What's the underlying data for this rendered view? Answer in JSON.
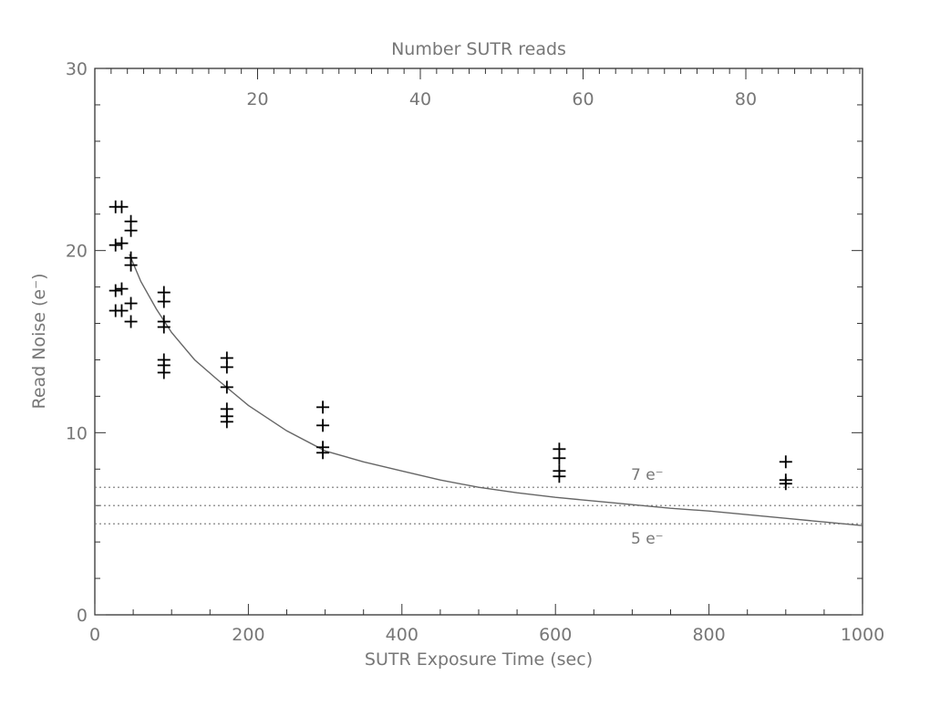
{
  "chart_data": {
    "type": "scatter",
    "title": "Number SUTR reads",
    "xlabel": "SUTR Exposure Time (sec)",
    "ylabel": "Read Noise (e⁻)",
    "xlim": [
      0,
      1000
    ],
    "ylim": [
      0,
      30
    ],
    "x_ticks": [
      0,
      200,
      400,
      600,
      800,
      1000
    ],
    "y_ticks": [
      0,
      10,
      20,
      30
    ],
    "top_axis": {
      "label": "Number SUTR reads",
      "ticks": [
        20,
        40,
        60,
        80
      ],
      "x_per_unit": 10.6
    },
    "grid": false,
    "series": [
      {
        "marker": "+",
        "color": "#000000",
        "points": [
          [
            27,
            22.4
          ],
          [
            35,
            22.4
          ],
          [
            27,
            20.3
          ],
          [
            35,
            20.4
          ],
          [
            27,
            17.8
          ],
          [
            35,
            17.9
          ],
          [
            27,
            16.7
          ],
          [
            35,
            16.7
          ],
          [
            47,
            21.6
          ],
          [
            47,
            21.1
          ],
          [
            47,
            19.6
          ],
          [
            47,
            19.2
          ],
          [
            47,
            17.1
          ],
          [
            47,
            16.1
          ],
          [
            90,
            17.7
          ],
          [
            90,
            17.2
          ],
          [
            90,
            16.1
          ],
          [
            90,
            15.8
          ],
          [
            90,
            14.0
          ],
          [
            90,
            13.7
          ],
          [
            90,
            13.3
          ],
          [
            172,
            14.1
          ],
          [
            172,
            13.6
          ],
          [
            172,
            12.5
          ],
          [
            172,
            11.3
          ],
          [
            172,
            10.9
          ],
          [
            172,
            10.6
          ],
          [
            297,
            11.4
          ],
          [
            297,
            10.4
          ],
          [
            297,
            9.2
          ],
          [
            297,
            8.9
          ],
          [
            605,
            9.1
          ],
          [
            605,
            8.6
          ],
          [
            605,
            7.9
          ],
          [
            605,
            7.6
          ],
          [
            900,
            8.4
          ],
          [
            900,
            7.4
          ],
          [
            900,
            7.2
          ]
        ]
      }
    ],
    "fit_curve": {
      "color": "#666666",
      "points": [
        [
          45,
          19.8
        ],
        [
          60,
          18.3
        ],
        [
          80,
          16.8
        ],
        [
          100,
          15.5
        ],
        [
          130,
          14.0
        ],
        [
          160,
          12.9
        ],
        [
          200,
          11.5
        ],
        [
          250,
          10.1
        ],
        [
          300,
          9.0
        ],
        [
          350,
          8.4
        ],
        [
          400,
          7.9
        ],
        [
          450,
          7.4
        ],
        [
          500,
          7.0
        ],
        [
          550,
          6.7
        ],
        [
          600,
          6.45
        ],
        [
          650,
          6.25
        ],
        [
          700,
          6.05
        ],
        [
          750,
          5.85
        ],
        [
          800,
          5.7
        ],
        [
          850,
          5.5
        ],
        [
          900,
          5.3
        ],
        [
          950,
          5.1
        ],
        [
          1000,
          4.9
        ]
      ]
    },
    "reference_lines": [
      {
        "y": 7,
        "style": "dotted",
        "label": "7 e⁻"
      },
      {
        "y": 6,
        "style": "dotted",
        "label": ""
      },
      {
        "y": 5,
        "style": "dotted",
        "label": "5 e⁻"
      }
    ]
  }
}
